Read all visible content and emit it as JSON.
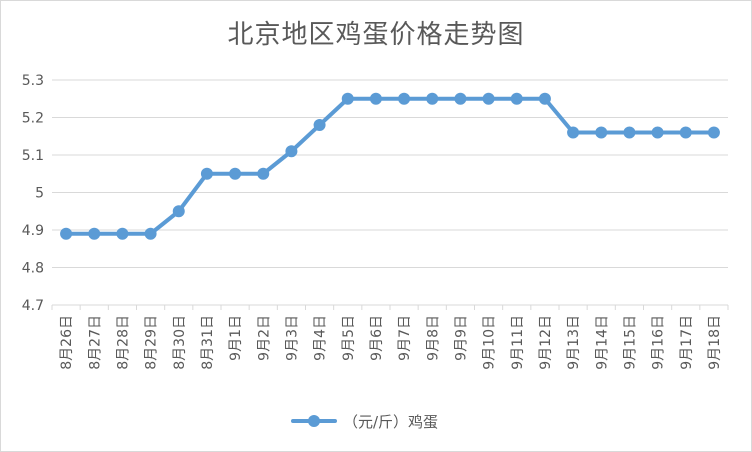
{
  "chart_data": {
    "type": "line",
    "title": "北京地区鸡蛋价格走势图",
    "xlabel": "",
    "ylabel": "",
    "ylim": [
      4.7,
      5.3
    ],
    "yticks": [
      "5.3",
      "5.2",
      "5.1",
      "5",
      "4.9",
      "4.8",
      "4.7"
    ],
    "ytick_values": [
      5.3,
      5.2,
      5.1,
      5.0,
      4.9,
      4.8,
      4.7
    ],
    "grid": true,
    "legend_position": "bottom",
    "categories": [
      "8月26日",
      "8月27日",
      "8月28日",
      "8月29日",
      "8月30日",
      "8月31日",
      "9月1日",
      "9月2日",
      "9月3日",
      "9月4日",
      "9月5日",
      "9月6日",
      "9月7日",
      "9月8日",
      "9月9日",
      "9月10日",
      "9月11日",
      "9月12日",
      "9月13日",
      "9月14日",
      "9月15日",
      "9月16日",
      "9月17日",
      "9月18日"
    ],
    "series": [
      {
        "name": "（元/斤）鸡蛋",
        "color": "#5b9bd5",
        "values": [
          4.89,
          4.89,
          4.89,
          4.89,
          4.95,
          5.05,
          5.05,
          5.05,
          5.11,
          5.18,
          5.25,
          5.25,
          5.25,
          5.25,
          5.25,
          5.25,
          5.25,
          5.25,
          5.16,
          5.16,
          5.16,
          5.16,
          5.16,
          5.16
        ]
      }
    ]
  },
  "colors": {
    "gridline": "#d9d9d9",
    "text": "#595959",
    "series": "#5b9bd5"
  }
}
